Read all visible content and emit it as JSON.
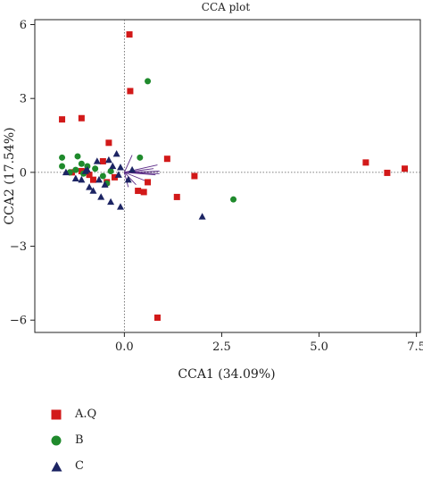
{
  "chart_data": {
    "type": "scatter",
    "title": "CCA plot",
    "xlabel": "CCA1 (34.09%)",
    "ylabel": "CCA2 (17.54%)",
    "xlim": [
      -2.3,
      7.6
    ],
    "ylim": [
      -6.5,
      6.2
    ],
    "xticks": [
      "0.0",
      "2.5",
      "5.0",
      "7.5"
    ],
    "xtick_values": [
      0,
      2.5,
      5,
      7.5
    ],
    "yticks": [
      "6",
      "3",
      "0",
      "−3",
      "−6"
    ],
    "ytick_values": [
      6,
      3,
      0,
      -3,
      -6
    ],
    "reference_lines": [
      0,
      0
    ],
    "series": [
      {
        "name": "A.Q",
        "color": "#d21919",
        "marker": "square",
        "points": [
          [
            0.13,
            5.6
          ],
          [
            0.15,
            3.3
          ],
          [
            -1.6,
            2.15
          ],
          [
            -1.1,
            2.2
          ],
          [
            -0.4,
            1.2
          ],
          [
            1.1,
            0.55
          ],
          [
            6.2,
            0.4
          ],
          [
            6.75,
            -0.02
          ],
          [
            7.2,
            0.15
          ],
          [
            1.8,
            -0.15
          ],
          [
            1.35,
            -1.0
          ],
          [
            0.85,
            -5.9
          ],
          [
            0.5,
            -0.8
          ],
          [
            0.35,
            -0.75
          ],
          [
            0.6,
            -0.4
          ],
          [
            -0.25,
            -0.2
          ],
          [
            -0.55,
            0.45
          ],
          [
            -0.45,
            -0.4
          ],
          [
            -0.8,
            -0.3
          ],
          [
            -1.1,
            0.05
          ],
          [
            -0.9,
            -0.1
          ],
          [
            -1.35,
            0.0
          ]
        ]
      },
      {
        "name": "B",
        "color": "#1f8a2c",
        "marker": "circle",
        "points": [
          [
            0.6,
            3.7
          ],
          [
            0.4,
            0.6
          ],
          [
            2.8,
            -1.1
          ],
          [
            -1.6,
            0.6
          ],
          [
            -1.6,
            0.25
          ],
          [
            -1.2,
            0.65
          ],
          [
            -1.1,
            0.35
          ],
          [
            -1.25,
            0.1
          ],
          [
            -1.4,
            0.0
          ],
          [
            -0.75,
            0.15
          ],
          [
            -0.95,
            0.25
          ],
          [
            -0.55,
            -0.15
          ],
          [
            -0.45,
            -0.45
          ],
          [
            -1.05,
            -0.05
          ],
          [
            -0.35,
            0.05
          ]
        ]
      },
      {
        "name": "C",
        "color": "#1c2463",
        "marker": "triangle",
        "points": [
          [
            2.0,
            -1.8
          ],
          [
            -0.1,
            -1.4
          ],
          [
            -0.35,
            -1.2
          ],
          [
            -0.6,
            -1.0
          ],
          [
            -0.8,
            -0.75
          ],
          [
            -0.5,
            -0.5
          ],
          [
            -0.9,
            -0.6
          ],
          [
            -1.1,
            -0.3
          ],
          [
            -1.25,
            -0.25
          ],
          [
            -1.5,
            0.0
          ],
          [
            -0.7,
            0.45
          ],
          [
            -0.2,
            0.75
          ],
          [
            -0.3,
            0.25
          ],
          [
            -0.1,
            0.2
          ],
          [
            0.2,
            0.1
          ],
          [
            -0.15,
            -0.1
          ],
          [
            -0.65,
            -0.3
          ],
          [
            -1.0,
            0.05
          ],
          [
            -0.4,
            0.5
          ],
          [
            -0.95,
            0.1
          ],
          [
            0.1,
            -0.3
          ]
        ]
      }
    ],
    "legend_position": "bottom-left"
  },
  "colors": {
    "vector": "#5a2a86",
    "axis": "#222222",
    "refline": "#555555"
  }
}
